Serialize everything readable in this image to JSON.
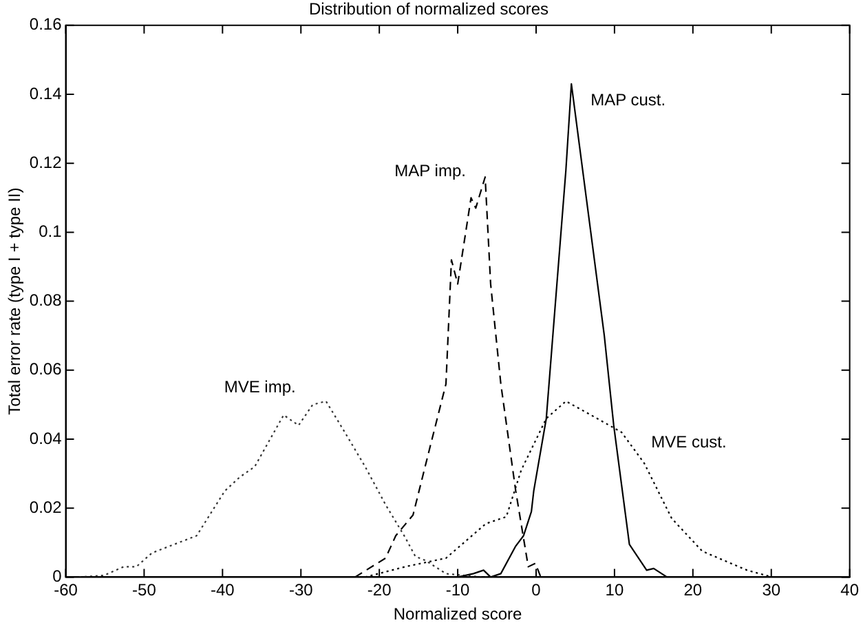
{
  "chart_data": {
    "type": "line",
    "title": "Distribution of normalized scores",
    "xlabel": "Normalized score",
    "ylabel": "Total error rate (type I + type II)",
    "xlim": [
      -60,
      40
    ],
    "xticks": [
      -60,
      -50,
      -40,
      -30,
      -20,
      -10,
      0,
      10,
      20,
      30,
      40
    ],
    "ylim": [
      0,
      0.16
    ],
    "yticks": [
      0,
      0.02,
      0.04,
      0.06,
      0.08,
      0.1,
      0.12,
      0.14,
      0.16
    ],
    "grid": false,
    "legend": false,
    "marker": "none",
    "series": [
      {
        "name": "MAP cust.",
        "color": "#000000",
        "line_style": "solid",
        "x": [
          -10,
          -8,
          -6.7,
          -5.8,
          -4.5,
          -2.6,
          -1.6,
          -0.6,
          -0.3,
          1.3,
          3.8,
          4.5,
          6.4,
          8.7,
          9.9,
          11.9,
          14.1,
          15,
          16.7,
          18.6
        ],
        "values": [
          0,
          0.001,
          0.002,
          0,
          0.001,
          0.009,
          0.012,
          0.019,
          0.025,
          0.046,
          0.118,
          0.143,
          0.11,
          0.07,
          0.044,
          0.0095,
          0.002,
          0.0025,
          0,
          0
        ]
      },
      {
        "name": "MAP imp.",
        "color": "#000000",
        "line_style": "dashed",
        "x": [
          -23.1,
          -19.2,
          -17.9,
          -15.7,
          -13.5,
          -11.5,
          -10.8,
          -10,
          -8.3,
          -7.7,
          -6.5,
          -5.8,
          -4.5,
          -2.6,
          -1,
          -0.1,
          0.6
        ],
        "values": [
          0,
          0.0055,
          0.012,
          0.018,
          0.038,
          0.056,
          0.092,
          0.085,
          0.11,
          0.107,
          0.116,
          0.085,
          0.056,
          0.025,
          0.003,
          0.004,
          0
        ]
      },
      {
        "name": "MVE cust.",
        "color": "#000000",
        "line_style": "dotted",
        "x": [
          -21.8,
          -16.7,
          -11.5,
          -6.4,
          -3.8,
          -1.9,
          1.3,
          3.8,
          7,
          10.9,
          13.8,
          17.3,
          21.2,
          26.9,
          30.1,
          38
        ],
        "values": [
          0,
          0.003,
          0.0055,
          0.0155,
          0.0175,
          0.031,
          0.046,
          0.051,
          0.047,
          0.042,
          0.033,
          0.017,
          0.0075,
          0.002,
          0,
          0
        ]
      },
      {
        "name": "MVE imp.",
        "color": "#333333",
        "line_style": "dotted",
        "x": [
          -58.3,
          -55.1,
          -52.6,
          -51,
          -49,
          -43.3,
          -39.7,
          -37.8,
          -35.9,
          -32.2,
          -30.3,
          -28.5,
          -26.8,
          -24.4,
          -21.8,
          -19.2,
          -16.7,
          -15.4,
          -14.1,
          -11.5,
          -7,
          -6
        ],
        "values": [
          0,
          0.0005,
          0.003,
          0.003,
          0.007,
          0.012,
          0.025,
          0.029,
          0.032,
          0.047,
          0.044,
          0.05,
          0.051,
          0.042,
          0.032,
          0.021,
          0.0115,
          0.006,
          0.0048,
          0.001,
          0,
          0
        ]
      }
    ]
  }
}
